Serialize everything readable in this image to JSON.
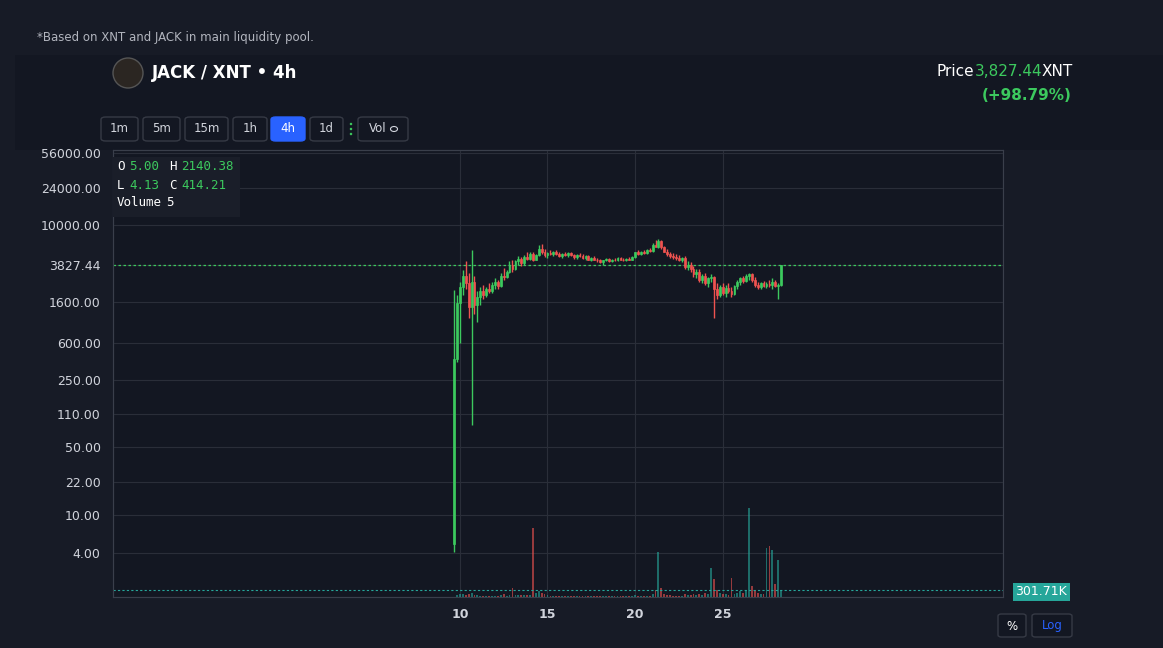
{
  "note": "*Based on XNT and JACK in main liquidity pool.",
  "header": {
    "title": "JACK / XNT • 4h",
    "price_label": "Price",
    "price": "3,827.44",
    "unit": "XNT",
    "change": "(+98.79%)"
  },
  "buttons": [
    "1m",
    "5m",
    "15m",
    "1h",
    "4h",
    "1d",
    "Vol"
  ],
  "selected": "4h",
  "scale_buttons": [
    "%",
    "Log"
  ],
  "legend_box": [
    [
      [
        "O",
        "5.00"
      ],
      [
        "H",
        "2140.38"
      ]
    ],
    [
      [
        "L",
        "4.13"
      ],
      [
        "C",
        "414.21"
      ]
    ],
    [
      [
        "Volume",
        "5"
      ]
    ]
  ],
  "chart_data": {
    "type": "candlestick",
    "log": "y",
    "grid": true,
    "xlim": [
      -9.8,
      41.0
    ],
    "xticks": [
      10,
      15,
      20,
      25
    ],
    "ylim": [
      1.4,
      60000
    ],
    "yticks": [
      {
        "value": 4,
        "label": "4.00"
      },
      {
        "value": 10,
        "label": "10.00"
      },
      {
        "value": 22,
        "label": "22.00"
      },
      {
        "value": 50,
        "label": "50.00"
      },
      {
        "value": 110,
        "label": "110.00"
      },
      {
        "value": 250,
        "label": "250.00"
      },
      {
        "value": 600,
        "label": "600.00"
      },
      {
        "value": 1600,
        "label": "1600.00"
      },
      3827.44,
      {
        "value": 10000,
        "label": "10000.00"
      },
      {
        "value": 24000,
        "label": "24000.00"
      },
      {
        "value": 56000,
        "label": "56000.00"
      }
    ],
    "y2lim": [
      0,
      20000000
    ],
    "y2ticks": [
      {
        "value": 301710,
        "label": "301.71K"
      }
    ],
    "x": [
      9.67,
      9.83,
      10,
      10.17,
      10.33,
      10.5,
      10.67,
      10.83,
      11,
      11.17,
      11.33,
      11.5,
      11.67,
      11.83,
      12,
      12.17,
      12.33,
      12.5,
      12.67,
      12.83,
      13,
      13.17,
      13.33,
      13.5,
      13.67,
      13.83,
      14,
      14.17,
      14.33,
      14.5,
      14.67,
      14.83,
      15,
      15.17,
      15.33,
      15.5,
      15.67,
      15.83,
      16,
      16.17,
      16.33,
      16.5,
      16.67,
      16.83,
      17,
      17.17,
      17.33,
      17.5,
      17.67,
      17.83,
      18,
      18.17,
      18.33,
      18.5,
      18.67,
      18.83,
      19,
      19.17,
      19.33,
      19.5,
      19.67,
      19.83,
      20,
      20.17,
      20.33,
      20.5,
      20.67,
      20.83,
      21,
      21.17,
      21.33,
      21.5,
      21.67,
      21.83,
      22,
      22.17,
      22.33,
      22.5,
      22.67,
      22.83,
      23,
      23.17,
      23.33,
      23.5,
      23.67,
      23.83,
      24,
      24.17,
      24.33,
      24.5,
      24.67,
      24.83,
      25,
      25.17,
      25.33,
      25.5,
      25.67,
      25.83,
      26,
      26.17,
      26.33,
      26.5,
      26.67,
      26.83,
      27,
      27.17,
      27.33,
      27.5,
      27.67,
      27.83,
      28,
      28.17,
      28.33
    ],
    "ohlc": [
      [
        5,
        2140.38,
        4.13,
        414.21
      ],
      [
        414,
        1900,
        380,
        1550
      ],
      [
        1550,
        2600,
        600,
        2300
      ],
      [
        2300,
        3400,
        1900,
        3000
      ],
      [
        3000,
        4200,
        2200,
        2500
      ],
      [
        2500,
        3200,
        1100,
        1400
      ],
      [
        1400,
        5500,
        85,
        2600
      ],
      [
        2600,
        3000,
        1200,
        1500
      ],
      [
        1500,
        2100,
        1000,
        1800
      ],
      [
        1800,
        2300,
        1500,
        2100
      ],
      [
        2100,
        2400,
        1700,
        1900
      ],
      [
        1900,
        2300,
        1800,
        2200
      ],
      [
        2200,
        2500,
        2000,
        2100
      ],
      [
        2100,
        2600,
        2000,
        2400
      ],
      [
        2400,
        2800,
        2200,
        2600
      ],
      [
        2600,
        2700,
        2200,
        2350
      ],
      [
        2350,
        3200,
        2300,
        3000
      ],
      [
        3000,
        3600,
        2700,
        2900
      ],
      [
        2900,
        3400,
        2800,
        3300
      ],
      [
        3300,
        4200,
        3200,
        3900
      ],
      [
        3900,
        4300,
        3300,
        3500
      ],
      [
        3500,
        4400,
        3400,
        4200
      ],
      [
        4200,
        4800,
        3900,
        4500
      ],
      [
        4500,
        4700,
        3800,
        4000
      ],
      [
        4000,
        4900,
        3900,
        4700
      ],
      [
        4700,
        5200,
        4300,
        4500
      ],
      [
        4500,
        5300,
        4400,
        5000
      ],
      [
        5000,
        5200,
        4200,
        4400
      ],
      [
        4400,
        5000,
        4300,
        4900
      ],
      [
        4900,
        6200,
        4800,
        5600
      ],
      [
        5600,
        6400,
        5000,
        5200
      ],
      [
        5200,
        5600,
        4700,
        4900
      ],
      [
        4900,
        5300,
        4600,
        5100
      ],
      [
        5100,
        5500,
        4900,
        5000
      ],
      [
        5000,
        5400,
        4800,
        5200
      ],
      [
        5200,
        5500,
        4900,
        5000
      ],
      [
        5000,
        5200,
        4700,
        4800
      ],
      [
        4800,
        5100,
        4600,
        5000
      ],
      [
        5000,
        5300,
        4800,
        4900
      ],
      [
        4900,
        5200,
        4700,
        5100
      ],
      [
        5100,
        5300,
        4800,
        4850
      ],
      [
        4850,
        5000,
        4500,
        4700
      ],
      [
        4700,
        5000,
        4500,
        4900
      ],
      [
        4900,
        5100,
        4700,
        4750
      ],
      [
        4750,
        5000,
        4500,
        4600
      ],
      [
        4600,
        4900,
        4400,
        4800
      ],
      [
        4800,
        4950,
        4300,
        4400
      ],
      [
        4400,
        4700,
        4200,
        4600
      ],
      [
        4600,
        4800,
        4300,
        4350
      ],
      [
        4350,
        4600,
        4100,
        4300
      ],
      [
        4300,
        4500,
        4000,
        4100
      ],
      [
        4100,
        4400,
        3900,
        4300
      ],
      [
        4300,
        4600,
        4200,
        4450
      ],
      [
        4450,
        4600,
        4100,
        4200
      ],
      [
        4200,
        4500,
        4100,
        4400
      ],
      [
        4400,
        4600,
        4200,
        4300
      ],
      [
        4300,
        4700,
        4200,
        4550
      ],
      [
        4550,
        4700,
        4300,
        4400
      ],
      [
        4400,
        4600,
        4200,
        4300
      ],
      [
        4300,
        4600,
        4200,
        4500
      ],
      [
        4500,
        4700,
        4300,
        4400
      ],
      [
        4400,
        4800,
        4300,
        4700
      ],
      [
        4700,
        5300,
        4600,
        5200
      ],
      [
        5200,
        5500,
        4900,
        5000
      ],
      [
        5000,
        5400,
        4900,
        5300
      ],
      [
        5300,
        5500,
        5000,
        5100
      ],
      [
        5100,
        5600,
        5000,
        5500
      ],
      [
        5500,
        5800,
        5200,
        5400
      ],
      [
        5400,
        6500,
        5300,
        6200
      ],
      [
        6200,
        7000,
        5900,
        6000
      ],
      [
        6000,
        7200,
        5800,
        6800
      ],
      [
        6800,
        7000,
        5700,
        5900
      ],
      [
        5900,
        6100,
        5200,
        5300
      ],
      [
        5300,
        5600,
        4800,
        5000
      ],
      [
        5000,
        5300,
        4600,
        4800
      ],
      [
        4800,
        5100,
        4500,
        4700
      ],
      [
        4700,
        5000,
        4400,
        4600
      ],
      [
        4600,
        4900,
        4200,
        4400
      ],
      [
        4400,
        4700,
        4100,
        4600
      ],
      [
        4600,
        4800,
        3500,
        3700
      ],
      [
        3700,
        4200,
        3400,
        3900
      ],
      [
        3900,
        4100,
        3300,
        3500
      ],
      [
        3500,
        3800,
        2900,
        3100
      ],
      [
        3100,
        3500,
        2800,
        3300
      ],
      [
        3300,
        3500,
        2600,
        2700
      ],
      [
        2700,
        3100,
        2500,
        3000
      ],
      [
        3000,
        3200,
        2400,
        2500
      ],
      [
        2500,
        2900,
        2300,
        2800
      ],
      [
        2800,
        3100,
        2600,
        2900
      ],
      [
        2900,
        3000,
        1100,
        2200
      ],
      [
        2200,
        2500,
        1700,
        1900
      ],
      [
        1900,
        2400,
        1800,
        2300
      ],
      [
        2300,
        2500,
        1900,
        2000
      ],
      [
        2000,
        2400,
        1800,
        2250
      ],
      [
        2250,
        2500,
        2000,
        2100
      ],
      [
        2100,
        2300,
        1800,
        1950
      ],
      [
        1950,
        2400,
        1900,
        2350
      ],
      [
        2350,
        2700,
        2200,
        2600
      ],
      [
        2600,
        2900,
        2400,
        2800
      ],
      [
        2800,
        3000,
        2500,
        2650
      ],
      [
        2650,
        3100,
        2600,
        3000
      ],
      [
        3000,
        3200,
        2700,
        3100
      ],
      [
        3100,
        3200,
        2600,
        2700
      ],
      [
        2700,
        2900,
        2300,
        2400
      ],
      [
        2400,
        2600,
        2200,
        2300
      ],
      [
        2300,
        2600,
        2200,
        2500
      ],
      [
        2500,
        2650,
        2300,
        2350
      ],
      [
        2350,
        2600,
        2250,
        2450
      ],
      [
        2450,
        2700,
        2300,
        2400
      ],
      [
        2400,
        2800,
        2200,
        2600
      ],
      [
        2600,
        2700,
        2300,
        2350
      ],
      [
        2350,
        2500,
        1700,
        2400
      ],
      [
        2400,
        3900,
        2350,
        3827.44
      ]
    ],
    "volume": [
      5,
      90000,
      150000,
      120000,
      100000,
      130000,
      200000,
      110000,
      90000,
      60000,
      50000,
      40000,
      40000,
      50000,
      60000,
      50000,
      80000,
      150000,
      60000,
      80000,
      400000,
      90000,
      80000,
      70000,
      90000,
      80000,
      100000,
      3100000,
      200000,
      250000,
      180000,
      120000,
      90000,
      60000,
      50000,
      60000,
      50000,
      40000,
      40000,
      50000,
      40000,
      50000,
      30000,
      30000,
      40000,
      40000,
      50000,
      40000,
      30000,
      40000,
      50000,
      40000,
      30000,
      40000,
      30000,
      30000,
      40000,
      30000,
      30000,
      40000,
      30000,
      50000,
      90000,
      60000,
      50000,
      50000,
      60000,
      50000,
      150000,
      300000,
      2000000,
      400000,
      150000,
      100000,
      80000,
      60000,
      50000,
      60000,
      40000,
      150000,
      100000,
      80000,
      120000,
      90000,
      150000,
      100000,
      200000,
      150000,
      1300000,
      800000,
      300000,
      200000,
      150000,
      120000,
      100000,
      850000,
      150000,
      200000,
      250000,
      200000,
      300000,
      4000000,
      500000,
      300000,
      200000,
      150000,
      120000,
      2200000,
      2300000,
      2100000,
      600000,
      1650000,
      301710
    ]
  }
}
